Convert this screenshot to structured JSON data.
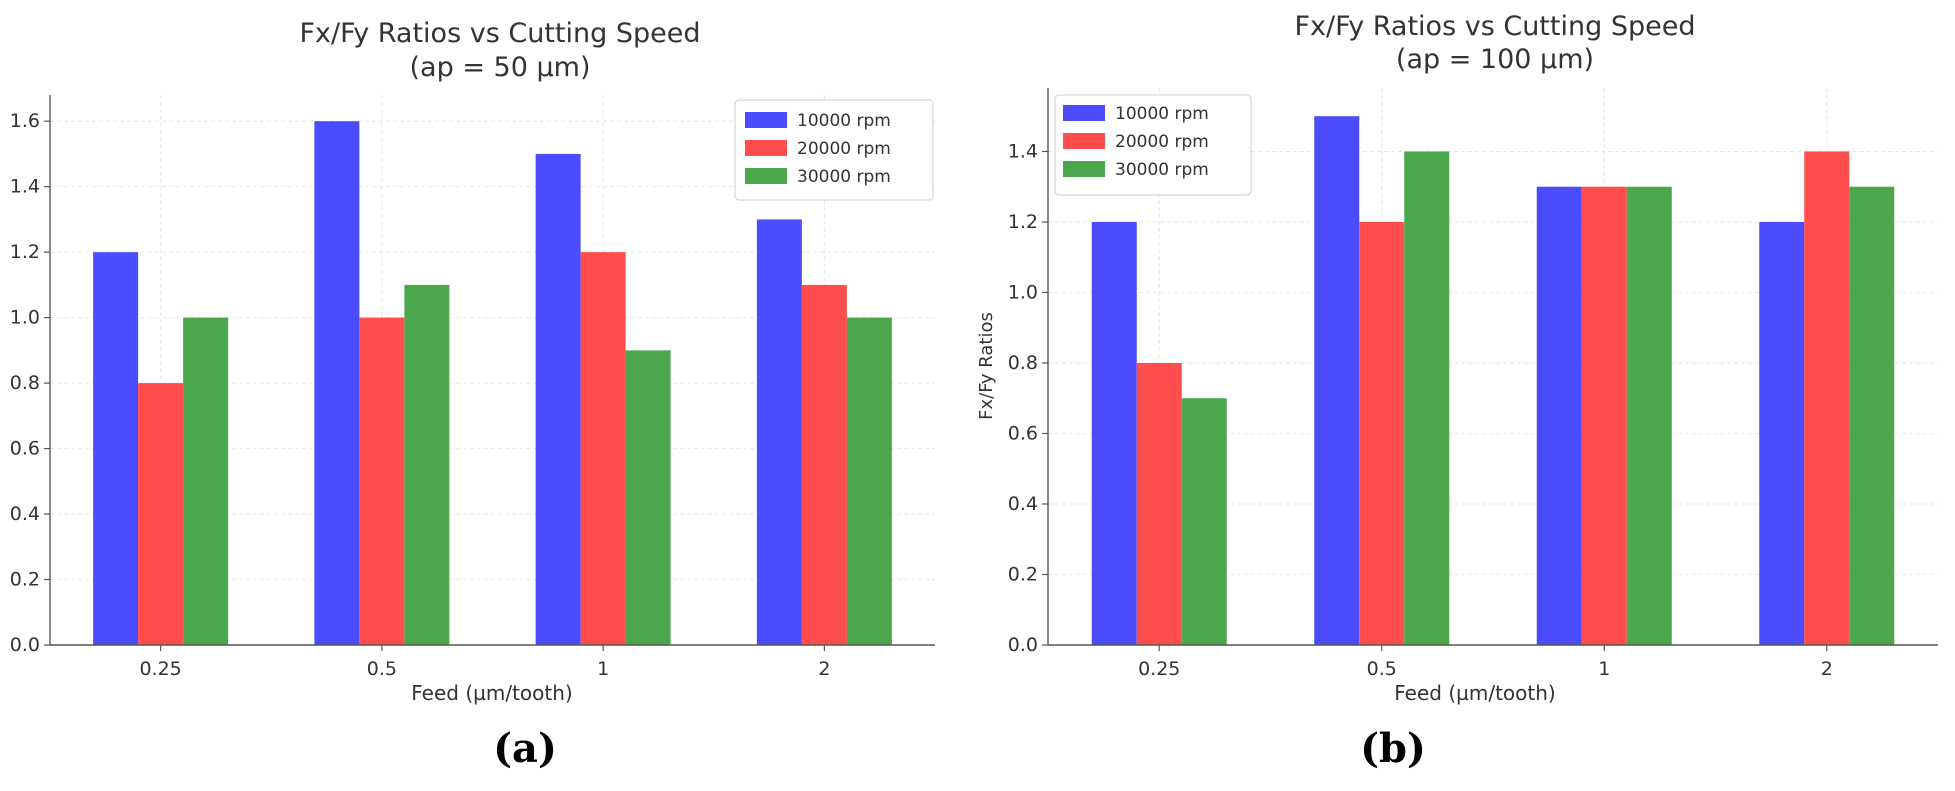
{
  "chart_data": [
    {
      "type": "bar",
      "panel": "(a)",
      "title": "Fx/Fy Ratios vs Cutting Speed",
      "subtitle": "(ap = 50 µm)",
      "xlabel": "Feed (µm/tooth)",
      "ylabel": "",
      "categories": [
        "0.25",
        "0.5",
        "1",
        "2"
      ],
      "series": [
        {
          "name": "10000 rpm",
          "color": "#4c4cff",
          "values": [
            1.2,
            1.6,
            1.5,
            1.3
          ]
        },
        {
          "name": "20000 rpm",
          "color": "#ff4c4c",
          "values": [
            0.8,
            1.0,
            1.2,
            1.1
          ]
        },
        {
          "name": "30000 rpm",
          "color": "#4ca64c",
          "values": [
            1.0,
            1.1,
            0.9,
            1.0
          ]
        }
      ],
      "ylim": [
        0,
        1.68
      ],
      "yticks": [
        "0.0",
        "0.2",
        "0.4",
        "0.6",
        "0.8",
        "1.0",
        "1.2",
        "1.4",
        "1.6"
      ],
      "grid": true,
      "legend_position": "top-right"
    },
    {
      "type": "bar",
      "panel": "(b)",
      "title": "Fx/Fy Ratios vs Cutting Speed",
      "subtitle": "(ap = 100 µm)",
      "xlabel": "Feed (µm/tooth)",
      "ylabel": "Fx/Fy Ratios",
      "categories": [
        "0.25",
        "0.5",
        "1",
        "2"
      ],
      "series": [
        {
          "name": "10000 rpm",
          "color": "#4c4cff",
          "values": [
            1.2,
            1.5,
            1.3,
            1.2
          ]
        },
        {
          "name": "20000 rpm",
          "color": "#ff4c4c",
          "values": [
            0.8,
            1.2,
            1.3,
            1.4
          ]
        },
        {
          "name": "30000 rpm",
          "color": "#4ca64c",
          "values": [
            0.7,
            1.4,
            1.3,
            1.3
          ]
        }
      ],
      "ylim": [
        0,
        1.58
      ],
      "yticks": [
        "0.0",
        "0.2",
        "0.4",
        "0.6",
        "0.8",
        "1.0",
        "1.2",
        "1.4"
      ],
      "grid": true,
      "legend_position": "top-left"
    }
  ]
}
